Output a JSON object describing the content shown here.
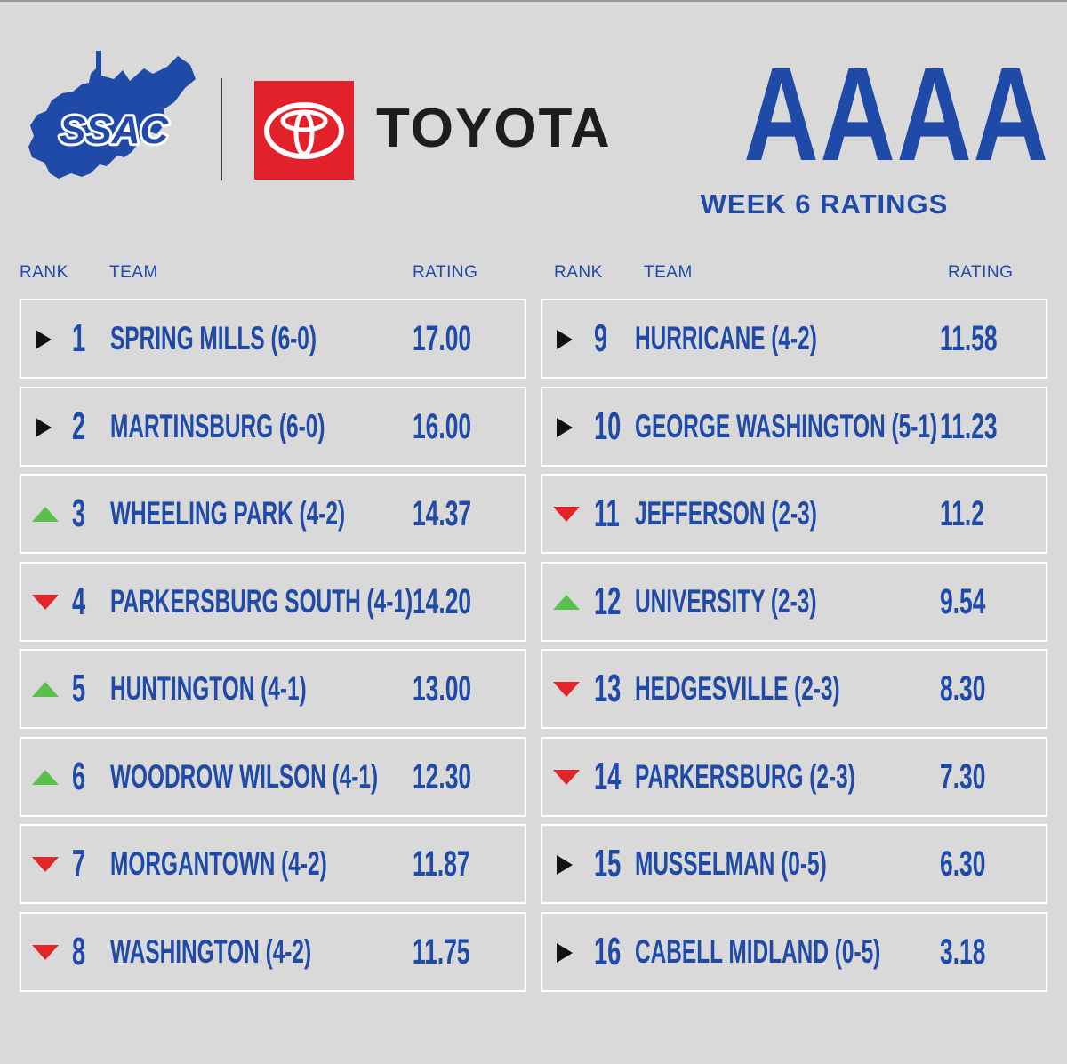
{
  "header": {
    "ssac_logo_text": "SSAC",
    "toyota_wordmark": "TOYOTA",
    "classification": "AAAA",
    "week_title": "WEEK 6 RATINGS"
  },
  "columns": {
    "rank": "RANK",
    "team": "TEAM",
    "rating": "RATING"
  },
  "colors": {
    "brand_blue": "#1f4aa8",
    "toyota_red": "#e3212b",
    "up": "#59c14b",
    "down": "#e3242b",
    "steady": "#111111"
  },
  "rankings": [
    {
      "rank": "1",
      "team": "SPRING MILLS  (6-0)",
      "rating": "17.00",
      "trend": "steady"
    },
    {
      "rank": "2",
      "team": "MARTINSBURG (6-0)",
      "rating": "16.00",
      "trend": "steady"
    },
    {
      "rank": "3",
      "team": "WHEELING PARK (4-2)",
      "rating": "14.37",
      "trend": "up"
    },
    {
      "rank": "4",
      "team": "PARKERSBURG SOUTH (4-1)",
      "rating": "14.20",
      "trend": "down"
    },
    {
      "rank": "5",
      "team": "HUNTINGTON (4-1)",
      "rating": "13.00",
      "trend": "up"
    },
    {
      "rank": "6",
      "team": "WOODROW WILSON (4-1)",
      "rating": "12.30",
      "trend": "up"
    },
    {
      "rank": "7",
      "team": "MORGANTOWN (4-2)",
      "rating": "11.87",
      "trend": "down"
    },
    {
      "rank": "8",
      "team": "WASHINGTON  (4-2)",
      "rating": "11.75",
      "trend": "down"
    },
    {
      "rank": "9",
      "team": "HURRICANE (4-2)",
      "rating": "11.58",
      "trend": "steady"
    },
    {
      "rank": "10",
      "team": "GEORGE WASHINGTON (5-1)",
      "rating": "11.23",
      "trend": "steady"
    },
    {
      "rank": "11",
      "team": "JEFFERSON (2-3)",
      "rating": "11.2",
      "trend": "down"
    },
    {
      "rank": "12",
      "team": "UNIVERSITY (2-3)",
      "rating": "9.54",
      "trend": "up"
    },
    {
      "rank": "13",
      "team": "HEDGESVILLE  (2-3)",
      "rating": "8.30",
      "trend": "down"
    },
    {
      "rank": "14",
      "team": "PARKERSBURG (2-3)",
      "rating": "7.30",
      "trend": "down"
    },
    {
      "rank": "15",
      "team": "MUSSELMAN (0-5)",
      "rating": "6.30",
      "trend": "steady"
    },
    {
      "rank": "16",
      "team": "CABELL MIDLAND (0-5)",
      "rating": "3.18",
      "trend": "steady"
    }
  ]
}
